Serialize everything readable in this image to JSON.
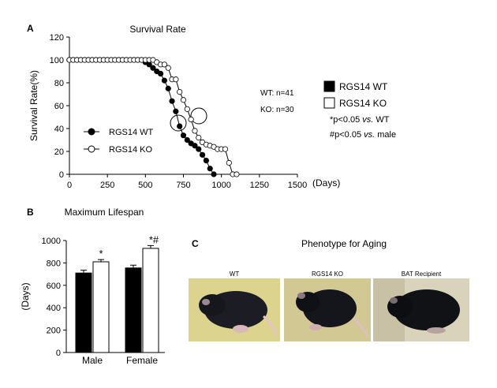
{
  "panels": {
    "A": "A",
    "B": "B",
    "C": "C"
  },
  "chart_data": [
    {
      "type": "line",
      "title": "Survival Rate",
      "xlabel": "(Days)",
      "ylabel": "Survival Rate(%)",
      "xlim": [
        0,
        1500
      ],
      "ylim": [
        0,
        120
      ],
      "xticks": [
        "0",
        "250",
        "500",
        "750",
        "1000",
        "1250",
        "1500"
      ],
      "yticks": [
        "0",
        "20",
        "40",
        "60",
        "80",
        "100",
        "120"
      ],
      "legend_placement": "bottom-left",
      "series": [
        {
          "name": "RGS14 WT",
          "marker": "filled-circle",
          "x": [
            0,
            25,
            50,
            75,
            100,
            125,
            150,
            175,
            200,
            225,
            250,
            275,
            300,
            325,
            350,
            375,
            400,
            425,
            450,
            475,
            500,
            525,
            550,
            575,
            600,
            625,
            650,
            675,
            700,
            725,
            750,
            775,
            800,
            825,
            850,
            875,
            900,
            925,
            950
          ],
          "y": [
            100,
            100,
            100,
            100,
            100,
            100,
            100,
            100,
            100,
            100,
            100,
            100,
            100,
            100,
            100,
            100,
            100,
            100,
            100,
            100,
            98,
            96,
            93,
            90,
            88,
            82,
            75,
            64,
            55,
            42,
            34,
            30,
            27,
            25,
            22,
            17,
            12,
            5,
            0
          ]
        },
        {
          "name": "RGS14 KO",
          "marker": "open-circle",
          "x": [
            0,
            25,
            50,
            75,
            100,
            125,
            150,
            175,
            200,
            225,
            250,
            275,
            300,
            325,
            350,
            375,
            400,
            425,
            450,
            475,
            500,
            525,
            550,
            575,
            600,
            625,
            650,
            675,
            700,
            725,
            750,
            775,
            800,
            825,
            850,
            875,
            900,
            925,
            950,
            975,
            1000,
            1025,
            1050,
            1075,
            1100
          ],
          "y": [
            100,
            100,
            100,
            100,
            100,
            100,
            100,
            100,
            100,
            100,
            100,
            100,
            100,
            100,
            100,
            100,
            100,
            100,
            100,
            100,
            100,
            100,
            100,
            98,
            96,
            96,
            93,
            83,
            83,
            72,
            65,
            57,
            48,
            38,
            32,
            28,
            26,
            25,
            24,
            22,
            22,
            22,
            10,
            0,
            0
          ]
        }
      ],
      "annotations": {
        "wt_n": "WT: n=41",
        "ko_n": "KO: n=30"
      }
    },
    {
      "type": "bar",
      "title": "Maximum Lifespan",
      "ylabel": "(Days)",
      "ylim": [
        0,
        1000
      ],
      "yticks": [
        "0",
        "200",
        "400",
        "600",
        "800",
        "1000"
      ],
      "categories": [
        "Male",
        "Female"
      ],
      "series": [
        {
          "name": "RGS14 WT",
          "color": "#000000",
          "values": [
            710,
            755
          ],
          "errors": [
            25,
            25
          ],
          "marks": [
            "",
            ""
          ]
        },
        {
          "name": "RGS14 KO",
          "color": "#ffffff",
          "values": [
            810,
            930
          ],
          "errors": [
            20,
            25
          ],
          "marks": [
            "*",
            "*#"
          ]
        }
      ]
    }
  ],
  "legend": {
    "wt": "RGS14 WT",
    "ko": "RGS14 KO",
    "note1": "*p<0.05 vs. WT",
    "note2": "#p<0.05 vs. male"
  },
  "phenotype": {
    "title": "Phenotype for Aging",
    "photos": [
      {
        "label": "WT",
        "bg": "#d9d28a"
      },
      {
        "label": "RGS14 KO",
        "bg": "#cfc590"
      },
      {
        "label": "BAT Recipient",
        "bg": "#d6cfb5"
      }
    ]
  }
}
